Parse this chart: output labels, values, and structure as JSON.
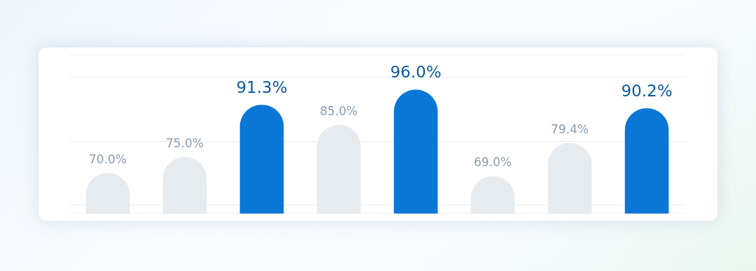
{
  "chart_data": {
    "type": "bar",
    "categories": [
      null,
      null,
      null,
      null,
      null,
      null,
      null,
      null
    ],
    "values": [
      70,
      75,
      91.3,
      85,
      96,
      69,
      79.4,
      90.2
    ],
    "colors": [
      "#e6ebef",
      "#e6ebef",
      "#0a77d6",
      "#e6ebef",
      "#0a77d6",
      "#e6ebef",
      "#e6ebef",
      "#0a77d6"
    ],
    "value_labels": [
      "70.0%",
      "75.0%",
      "91.3%",
      "85.0%",
      "96.0%",
      "69.0%",
      "79.4%",
      "90.2%"
    ],
    "ylim": [
      57.4,
      107
    ],
    "yticks": [
      {
        "value": 60,
        "label": null
      },
      {
        "value": 80,
        "label": null
      },
      {
        "value": 100,
        "label": null
      }
    ],
    "grid": "y",
    "legend": false
  }
}
